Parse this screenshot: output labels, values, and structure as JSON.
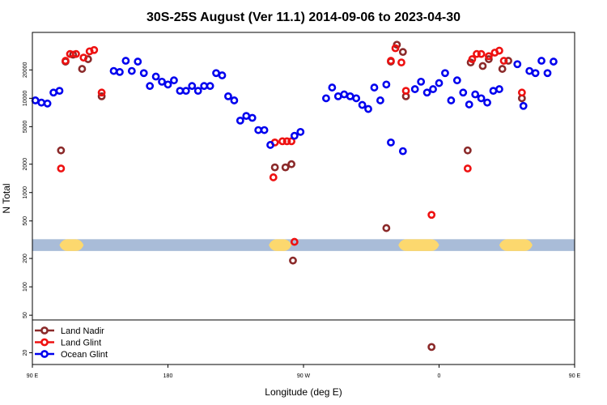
{
  "chart_data": {
    "type": "scatter",
    "title": "30S-25S August (Ver 11.1)   2014-09-06 to 2023-04-30",
    "xlabel": "Longitude (deg E)",
    "ylabel": "N Total",
    "y_scale": "log",
    "xlim": [
      90,
      450
    ],
    "ylim": [
      15,
      50000
    ],
    "x_ticks": [
      {
        "value": 90,
        "label": "90 E"
      },
      {
        "value": 180,
        "label": "180"
      },
      {
        "value": 270,
        "label": "90 W"
      },
      {
        "value": 360,
        "label": "0"
      },
      {
        "value": 450,
        "label": "90 E"
      },
      {
        "value": 540,
        "label": "180"
      }
    ],
    "y_ticks": [
      {
        "value": 20,
        "label": "20"
      },
      {
        "value": 50,
        "label": "50"
      },
      {
        "value": 100,
        "label": "100"
      },
      {
        "value": 200,
        "label": "200"
      },
      {
        "value": 500,
        "label": "500"
      },
      {
        "value": 1000,
        "label": "1000"
      },
      {
        "value": 2000,
        "label": "2000"
      },
      {
        "value": 5000,
        "label": "5000"
      },
      {
        "value": 10000,
        "label": "10000"
      },
      {
        "value": 20000,
        "label": "20000"
      }
    ],
    "x_axis_max": 540,
    "legend_position": "bottom-left",
    "series": [
      {
        "name": "Land Nadir",
        "color": "#8b2a2a",
        "points": [
          [
            109,
            2800
          ],
          [
            112,
            24500
          ],
          [
            117,
            29000
          ],
          [
            123,
            20500
          ],
          [
            127,
            26000
          ],
          [
            136,
            10500
          ],
          [
            251,
            1850
          ],
          [
            258,
            1850
          ],
          [
            262,
            2000
          ],
          [
            263,
            190
          ],
          [
            325,
            420
          ],
          [
            328,
            24500
          ],
          [
            332,
            37000
          ],
          [
            336,
            31000
          ],
          [
            338,
            10500
          ],
          [
            355,
            23
          ],
          [
            379,
            2800
          ],
          [
            381,
            24000
          ],
          [
            389,
            22000
          ],
          [
            393,
            26000
          ],
          [
            402,
            20500
          ],
          [
            406,
            25000
          ],
          [
            415,
            10000
          ]
        ]
      },
      {
        "name": "Land Glint",
        "color": "#ee1111",
        "points": [
          [
            109,
            1800
          ],
          [
            112,
            25000
          ],
          [
            115,
            29500
          ],
          [
            119,
            29500
          ],
          [
            124,
            27000
          ],
          [
            128,
            31500
          ],
          [
            131,
            32500
          ],
          [
            136,
            11500
          ],
          [
            250,
            1450
          ],
          [
            251,
            3400
          ],
          [
            256,
            3500
          ],
          [
            259,
            3500
          ],
          [
            262,
            3500
          ],
          [
            264,
            300
          ],
          [
            328,
            25000
          ],
          [
            331,
            34000
          ],
          [
            335,
            24000
          ],
          [
            338,
            12000
          ],
          [
            355,
            580
          ],
          [
            379,
            1800
          ],
          [
            382,
            26000
          ],
          [
            385,
            29500
          ],
          [
            388,
            29500
          ],
          [
            393,
            28000
          ],
          [
            397,
            30500
          ],
          [
            400,
            32000
          ],
          [
            403,
            25000
          ],
          [
            415,
            11500
          ]
        ]
      },
      {
        "name": "Ocean Glint",
        "color": "#0000ee",
        "points": [
          [
            92,
            9500
          ],
          [
            96,
            9000
          ],
          [
            100,
            8800
          ],
          [
            104,
            11500
          ],
          [
            108,
            12000
          ],
          [
            144,
            19500
          ],
          [
            148,
            19000
          ],
          [
            152,
            25000
          ],
          [
            156,
            19500
          ],
          [
            160,
            24500
          ],
          [
            164,
            18500
          ],
          [
            168,
            13500
          ],
          [
            172,
            17000
          ],
          [
            176,
            15000
          ],
          [
            180,
            14000
          ],
          [
            184,
            15500
          ],
          [
            188,
            12000
          ],
          [
            192,
            12000
          ],
          [
            196,
            13500
          ],
          [
            200,
            12000
          ],
          [
            204,
            13500
          ],
          [
            208,
            13500
          ],
          [
            212,
            18500
          ],
          [
            216,
            17500
          ],
          [
            220,
            10500
          ],
          [
            224,
            9500
          ],
          [
            228,
            5800
          ],
          [
            232,
            6500
          ],
          [
            236,
            6200
          ],
          [
            240,
            4600
          ],
          [
            244,
            4600
          ],
          [
            248,
            3200
          ],
          [
            264,
            4000
          ],
          [
            268,
            4400
          ],
          [
            285,
            10000
          ],
          [
            289,
            13000
          ],
          [
            293,
            10500
          ],
          [
            297,
            11000
          ],
          [
            301,
            10500
          ],
          [
            305,
            10000
          ],
          [
            309,
            8500
          ],
          [
            313,
            7700
          ],
          [
            317,
            13000
          ],
          [
            321,
            9500
          ],
          [
            325,
            14000
          ],
          [
            328,
            3400
          ],
          [
            336,
            2750
          ],
          [
            344,
            12500
          ],
          [
            348,
            15000
          ],
          [
            352,
            11500
          ],
          [
            356,
            12500
          ],
          [
            360,
            14500
          ],
          [
            364,
            18500
          ],
          [
            368,
            9500
          ],
          [
            372,
            15500
          ],
          [
            376,
            11500
          ],
          [
            380,
            8600
          ],
          [
            384,
            11000
          ],
          [
            388,
            10000
          ],
          [
            392,
            9000
          ],
          [
            396,
            12000
          ],
          [
            400,
            12500
          ],
          [
            412,
            23000
          ],
          [
            416,
            8300
          ],
          [
            420,
            19500
          ],
          [
            424,
            18500
          ],
          [
            428,
            25000
          ],
          [
            432,
            18500
          ],
          [
            436,
            24500
          ]
        ]
      }
    ],
    "bands": {
      "y_range": [
        240,
        320
      ],
      "ocean_color": "#a9bcd8",
      "land_color": "#fcd86e",
      "land_segments": [
        [
          108,
          124
        ],
        [
          247,
          262
        ],
        [
          333,
          360
        ],
        [
          400,
          422
        ]
      ]
    }
  }
}
